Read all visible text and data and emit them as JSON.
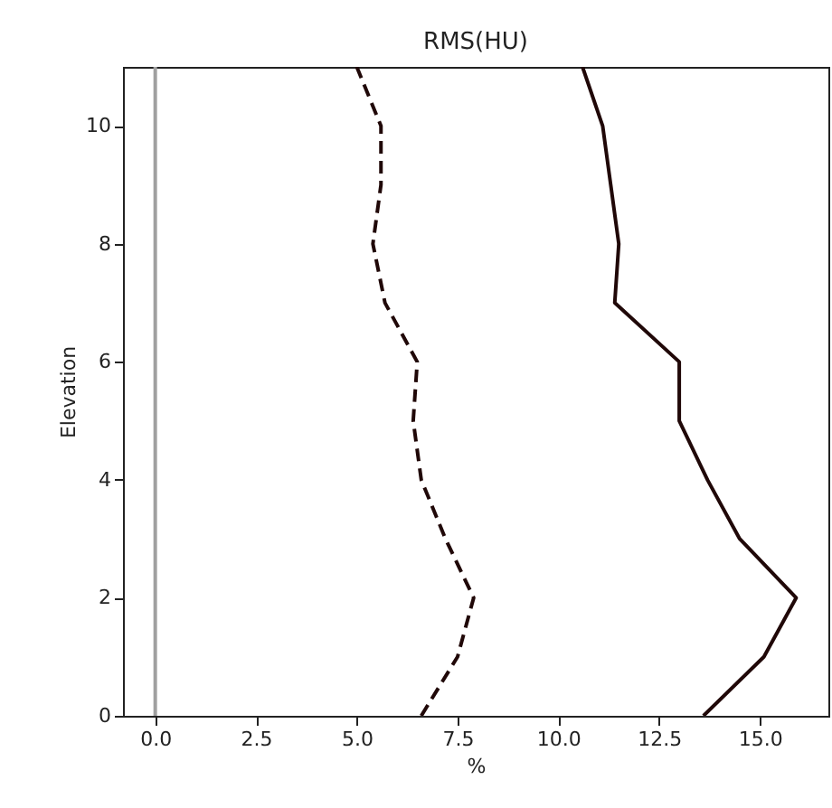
{
  "chart_data": {
    "type": "line",
    "title": "RMS(HU)",
    "xlabel": "%",
    "ylabel": "Elevation",
    "xlim": [
      -0.8,
      16.7
    ],
    "xticks": [
      {
        "value": 0,
        "label": "0.0"
      },
      2.5,
      {
        "value": 5,
        "label": "5.0"
      },
      7.5,
      {
        "value": 10,
        "label": "10.0"
      },
      12.5,
      {
        "value": 15,
        "label": "15.0"
      }
    ],
    "ylim": [
      0,
      11
    ],
    "yticks": [
      0,
      2,
      4,
      6,
      8,
      10
    ],
    "grid": false,
    "ref_lines": [
      {
        "axis": "x",
        "value": 0,
        "color": "#a0a0a0"
      }
    ],
    "series": [
      {
        "color": "#200808",
        "line_style": "dashed",
        "x": [
          6.6,
          7.5,
          7.9,
          7.2,
          6.6,
          6.4,
          6.5,
          5.7,
          5.4,
          5.6,
          5.6,
          5.0
        ],
        "values": [
          0,
          1,
          2,
          3,
          4,
          5,
          6,
          7,
          8,
          9,
          10,
          11
        ]
      },
      {
        "color": "#200808",
        "line_style": "solid",
        "x": [
          13.6,
          15.1,
          15.9,
          14.5,
          13.7,
          13.0,
          13.0,
          11.4,
          11.5,
          11.3,
          11.1,
          10.6
        ],
        "values": [
          0,
          1,
          2,
          3,
          4,
          5,
          6,
          7,
          8,
          9,
          10,
          11
        ]
      }
    ]
  }
}
